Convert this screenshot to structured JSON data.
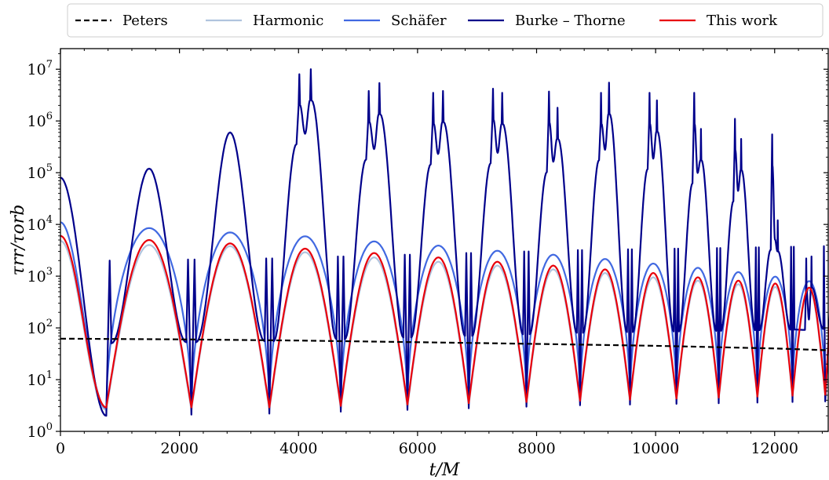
{
  "chart_data": {
    "type": "line",
    "xlabel": "t/M",
    "ylabel": "τrr/τorb",
    "xlim": [
      0,
      12900
    ],
    "ylim": [
      1,
      25000000
    ],
    "yscale": "log",
    "grid": false,
    "legend_position": "top",
    "x_ticks": [
      "0",
      "2000",
      "4000",
      "6000",
      "8000",
      "10000",
      "12000"
    ],
    "y_ticks": [
      {
        "base": "10",
        "exp": "0"
      },
      {
        "base": "10",
        "exp": "1"
      },
      {
        "base": "10",
        "exp": "2"
      },
      {
        "base": "10",
        "exp": "3"
      },
      {
        "base": "10",
        "exp": "4"
      },
      {
        "base": "10",
        "exp": "5"
      },
      {
        "base": "10",
        "exp": "6"
      },
      {
        "base": "10",
        "exp": "7"
      }
    ],
    "orbit_minima_x": [
      770,
      2200,
      3510,
      4710,
      5830,
      6860,
      7830,
      8730,
      9570,
      10350,
      11060,
      11710,
      12300,
      12850
    ],
    "orbit_maxima_x": [
      1490,
      2850,
      4110,
      5270,
      6350,
      7340,
      8280,
      9150,
      9960,
      10710,
      11390,
      12010,
      12580
    ],
    "series": [
      {
        "name": "Peters",
        "color": "#000000",
        "dash": "dashed",
        "x": [
          0,
          2000,
          4000,
          6000,
          8000,
          10000,
          12000,
          12900
        ],
        "y": [
          62,
          60,
          57,
          53,
          49,
          45,
          40,
          37
        ]
      },
      {
        "name": "Harmonic",
        "color": "#b0c4de",
        "dash": "solid",
        "initial_value": 4800,
        "apocenter_values": [
          4000,
          3800,
          2900,
          2300,
          1900,
          1600,
          1350,
          1150,
          950,
          820,
          700,
          620,
          540
        ],
        "pericenter_values": [
          2.6,
          2.6,
          2.6,
          2.8,
          3.0,
          3.2,
          3.4,
          3.6,
          3.8,
          4.0,
          4.2,
          4.4,
          4.6,
          4.8
        ]
      },
      {
        "name": "Schäfer",
        "color": "#4169e1",
        "dash": "solid",
        "initial_value": 11000,
        "apocenter_values": [
          8500,
          7000,
          5900,
          4700,
          3900,
          3100,
          2600,
          2150,
          1750,
          1450,
          1200,
          980,
          800
        ],
        "pericenter_values": [
          2.8,
          2.8,
          2.8,
          3.0,
          3.2,
          3.4,
          3.6,
          3.8,
          4.0,
          4.2,
          4.4,
          4.6,
          4.8,
          5.0
        ]
      },
      {
        "name": "Burke – Thorne",
        "color": "#00008b",
        "dash": "solid",
        "initial_value": 80000,
        "apocenter_peaks": [
          [
            120000
          ],
          [
            600000
          ],
          [
            8000000,
            10000000
          ],
          [
            3800000,
            5400000
          ],
          [
            3500000,
            3800000
          ],
          [
            4200000,
            3500000
          ],
          [
            3700000,
            1800000
          ],
          [
            3500000,
            5500000
          ],
          [
            3500000,
            2500000
          ],
          [
            3500000,
            700000
          ],
          [
            1100000,
            450000
          ],
          [
            550000,
            12000
          ],
          [
            2200,
            2400
          ]
        ],
        "pericenter_values": [
          2.0,
          2.1,
          2.2,
          2.4,
          2.6,
          2.8,
          3.0,
          3.2,
          3.3,
          3.4,
          3.5,
          3.6,
          3.7,
          3.8
        ]
      },
      {
        "name": "This work",
        "color": "#e8000b",
        "dash": "solid",
        "initial_value": 6000,
        "apocenter_values": [
          5000,
          4300,
          3400,
          2800,
          2300,
          1900,
          1600,
          1350,
          1150,
          950,
          820,
          720,
          600
        ],
        "pericenter_values": [
          2.9,
          2.9,
          2.9,
          3.1,
          3.3,
          3.5,
          3.7,
          3.9,
          4.1,
          4.3,
          4.5,
          4.7,
          4.9,
          5.1
        ]
      }
    ]
  }
}
